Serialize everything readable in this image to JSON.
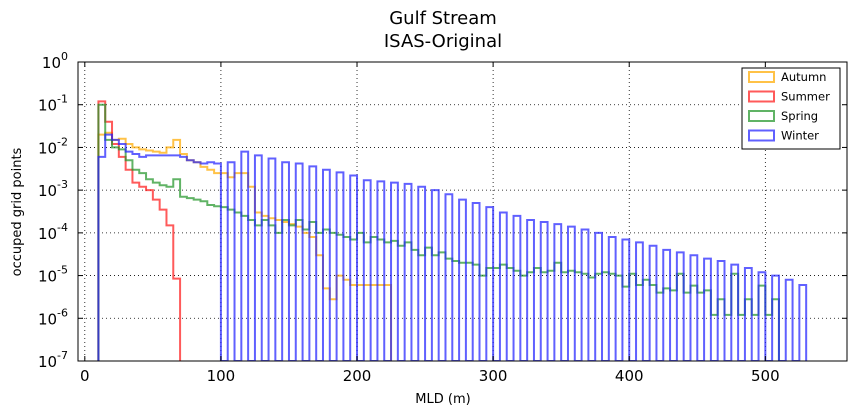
{
  "chart_data": {
    "type": "step-histogram",
    "title": "Gulf Stream",
    "subtitle": "ISAS-Original",
    "xlabel": "MLD (m)",
    "ylabel": "occuped grid points",
    "xlim": [
      -5,
      560
    ],
    "ylim": [
      1e-07,
      1
    ],
    "yscale": "log",
    "x_ticks": [
      0,
      100,
      200,
      300,
      400,
      500
    ],
    "y_ticks": [
      {
        "base": "10",
        "exp": "-7"
      },
      {
        "base": "10",
        "exp": "-6"
      },
      {
        "base": "10",
        "exp": "-5"
      },
      {
        "base": "10",
        "exp": "-4"
      },
      {
        "base": "10",
        "exp": "-3"
      },
      {
        "base": "10",
        "exp": "-2"
      },
      {
        "base": "10",
        "exp": "-1"
      },
      {
        "base": "10",
        "exp": "0"
      }
    ],
    "grid": true,
    "legend_position": "top-right",
    "bin_edges": [
      10,
      15,
      20,
      25,
      30,
      35,
      40,
      45,
      50,
      55,
      60,
      65,
      70,
      75,
      80,
      85,
      90,
      95,
      100,
      105,
      110,
      115,
      120,
      125,
      130,
      135,
      140,
      145,
      150,
      155,
      160,
      165,
      170,
      175,
      180,
      185,
      190,
      195,
      200,
      205,
      210,
      215,
      220,
      225,
      230,
      235,
      240,
      245,
      250,
      255,
      260,
      265,
      270,
      275,
      280,
      285,
      290,
      295,
      300,
      305,
      310,
      315,
      320,
      325,
      330,
      335,
      340,
      345,
      350,
      355,
      360,
      365,
      370,
      375,
      380,
      385,
      390,
      395,
      400,
      405,
      410,
      415,
      420,
      425,
      430,
      435,
      440,
      445,
      450,
      455,
      460,
      465,
      470,
      475,
      480,
      485,
      490,
      495,
      500,
      505,
      510,
      515,
      520,
      525,
      530,
      535,
      540,
      545,
      550,
      555
    ],
    "series": [
      {
        "name": "Autumn",
        "color": "#ffaa00",
        "values": [
          0.02,
          0.022,
          0.015,
          0.016,
          0.012,
          0.01,
          0.009,
          0.0085,
          0.008,
          0.0075,
          0.01,
          0.015,
          0.007,
          0.005,
          0.0045,
          0.0035,
          0.003,
          0.0025,
          0.0025,
          0.002,
          0.0025,
          0.0025,
          0.0012,
          0.0003,
          0.00025,
          0.00022,
          0.0002,
          0.00018,
          0.00016,
          0.00014,
          0.0001,
          8e-05,
          3e-05,
          5e-06,
          2.8e-06,
          1e-05,
          8e-06,
          6e-06,
          6e-06,
          6e-06,
          6e-06,
          6e-06,
          6e-06
        ]
      },
      {
        "name": "Summer",
        "color": "#ff1a1a",
        "values": [
          0.12,
          0.04,
          0.012,
          0.006,
          0.003,
          0.0015,
          0.0012,
          0.001,
          0.0006,
          0.00035,
          0.00015,
          8.5e-06
        ]
      },
      {
        "name": "Spring",
        "color": "#22952a",
        "values": [
          0.1,
          0.015,
          0.01,
          0.009,
          0.005,
          0.003,
          0.0025,
          0.0018,
          0.0015,
          0.0013,
          0.0012,
          0.0018,
          0.0007,
          0.00065,
          0.0006,
          0.00055,
          0.00045,
          0.00042,
          0.0004,
          0.00035,
          0.0003,
          0.00025,
          0.0002,
          0.00015,
          0.0002,
          0.00015,
          0.0001,
          0.0002,
          0.00015,
          0.0002,
          0.00012,
          0.00018,
          0.0001,
          0.00012,
          0.0001,
          9e-05,
          8e-05,
          7e-05,
          0.0001,
          6e-05,
          8e-05,
          7e-05,
          6e-05,
          6.5e-05,
          5e-05,
          6e-05,
          4e-05,
          3e-05,
          4.5e-05,
          3e-05,
          3.5e-05,
          2.5e-05,
          2.2e-05,
          2e-05,
          2e-05,
          1.8e-05,
          1e-05,
          1.5e-05,
          1.5e-05,
          1.8e-05,
          1.5e-05,
          1.3e-05,
          1e-05,
          1.2e-05,
          1.5e-05,
          1.2e-05,
          1.3e-05,
          2e-05,
          1.2e-05,
          1.3e-05,
          1.2e-05,
          1.1e-05,
          9e-06,
          1.1e-05,
          1.2e-05,
          1.1e-05,
          1e-05,
          5.5e-06,
          1.1e-05,
          6e-06,
          8e-06,
          6e-06,
          4e-06,
          5e-06,
          4.5e-06,
          1.1e-05,
          4e-06,
          5.8e-06,
          4e-06,
          4.5e-06,
          1.2e-06,
          2.8e-06,
          1.2e-06,
          1.1e-05,
          1.2e-06,
          2.8e-06,
          1.2e-06,
          5.8e-06,
          1.2e-06,
          2.8e-06
        ]
      },
      {
        "name": "Winter",
        "color": "#2222ff",
        "values": [
          0.006,
          0.02,
          0.015,
          0.012,
          0.008,
          0.007,
          0.006,
          0.0065,
          0.0065,
          0.0065,
          0.0065,
          0.0065,
          0.006,
          0.005,
          0.0045,
          0.0042,
          0.0045,
          0.0042,
          1e-07,
          0.0045,
          1e-07,
          0.008,
          1e-07,
          0.0065,
          1e-07,
          0.0055,
          1e-07,
          0.0045,
          1e-07,
          0.0042,
          1e-07,
          0.0036,
          1e-07,
          0.003,
          1e-07,
          0.0026,
          1e-07,
          0.0022,
          1e-07,
          0.0017,
          1e-07,
          0.0016,
          1e-07,
          0.0015,
          1e-07,
          0.0014,
          1e-07,
          0.0012,
          1e-07,
          0.001,
          1e-07,
          0.0008,
          1e-07,
          0.0006,
          1e-07,
          0.0005,
          1e-07,
          0.0004,
          1e-07,
          0.0003,
          1e-07,
          0.00025,
          1e-07,
          0.0002,
          1e-07,
          0.00018,
          1e-07,
          0.00016,
          1e-07,
          0.00014,
          1e-07,
          0.00012,
          1e-07,
          0.0001,
          1e-07,
          8e-05,
          1e-07,
          7e-05,
          1e-07,
          6e-05,
          1e-07,
          5e-05,
          1e-07,
          4e-05,
          1e-07,
          3.5e-05,
          1e-07,
          3e-05,
          1e-07,
          2.5e-05,
          1e-07,
          2.2e-05,
          1e-07,
          1.8e-05,
          1e-07,
          1.5e-05,
          1e-07,
          1.2e-05,
          1e-07,
          1e-05,
          1e-07,
          8e-06,
          1e-07,
          6e-06
        ]
      }
    ]
  }
}
